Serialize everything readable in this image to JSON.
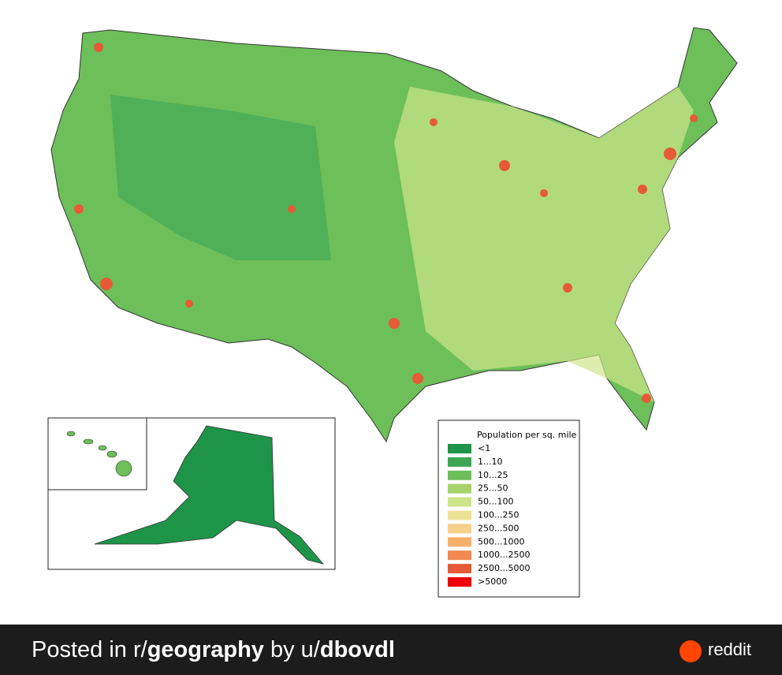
{
  "legend": {
    "title": "Population per sq. mile",
    "items": [
      {
        "label": "<1",
        "color": "#1e9449"
      },
      {
        "label": "1...10",
        "color": "#3da655"
      },
      {
        "label": "10...25",
        "color": "#6dbf5a"
      },
      {
        "label": "25...50",
        "color": "#a6d46a"
      },
      {
        "label": "50...100",
        "color": "#cfe58a"
      },
      {
        "label": "100...250",
        "color": "#ece494"
      },
      {
        "label": "250...500",
        "color": "#f6d18a"
      },
      {
        "label": "500...1000",
        "color": "#f7b06a"
      },
      {
        "label": "1000...2500",
        "color": "#f08a50"
      },
      {
        "label": "2500...5000",
        "color": "#e65a38"
      },
      {
        "label": ">5000",
        "color": "#f00000"
      }
    ]
  },
  "footer": {
    "prefix": "Posted in r/",
    "subreddit": "geography",
    "middle": " by u/",
    "user": "dbovdl",
    "brand": "reddit"
  }
}
